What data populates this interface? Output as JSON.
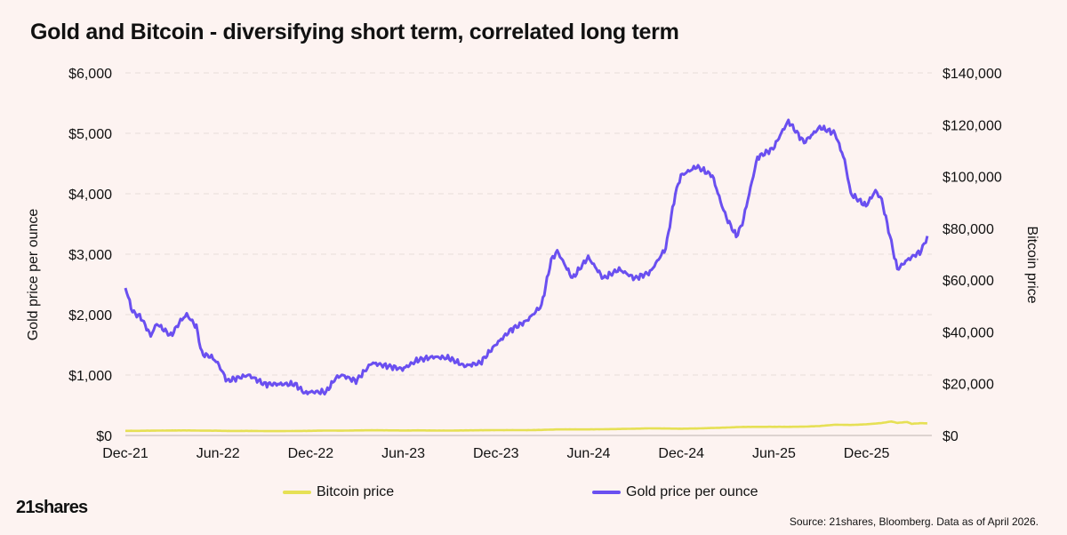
{
  "title": "Gold and Bitcoin - diversifying short term, correlated long term",
  "logo_text": "21shares",
  "source": "Source: 21shares, Bloomberg. Data as of April 2026.",
  "colors": {
    "background": "#fdf3f1",
    "bitcoin": "#e6e055",
    "gold": "#6a4ff0",
    "grid": "#e7dcd9"
  },
  "chart_data": {
    "type": "line",
    "x_axis": {
      "tick_labels": [
        "Dec-21",
        "Jun-22",
        "Dec-22",
        "Jun-23",
        "Dec-23",
        "Jun-24",
        "Dec-24",
        "Jun-25",
        "Dec-25"
      ]
    },
    "y_left": {
      "label": "Gold price per ounce",
      "range": [
        0,
        6000
      ],
      "ticks": [
        "$0",
        "$1,000",
        "$2,000",
        "$3,000",
        "$4,000",
        "$5,000",
        "$6,000"
      ]
    },
    "y_right": {
      "label": "Bitcoin price",
      "range": [
        0,
        140000
      ],
      "ticks": [
        "$0",
        "$20,000",
        "$40,000",
        "$60,000",
        "$80,000",
        "$100,000",
        "$120,000",
        "$140,000"
      ]
    },
    "grid": true,
    "legend_position": "bottom",
    "series": [
      {
        "name": "Bitcoin price",
        "axis": "right",
        "color": "#e6e055",
        "points": [
          [
            "2021-12-01",
            1780
          ],
          [
            "2022-01-01",
            1800
          ],
          [
            "2022-02-01",
            1880
          ],
          [
            "2022-03-01",
            1930
          ],
          [
            "2022-04-01",
            1960
          ],
          [
            "2022-05-01",
            1860
          ],
          [
            "2022-06-01",
            1830
          ],
          [
            "2022-07-01",
            1740
          ],
          [
            "2022-08-01",
            1780
          ],
          [
            "2022-09-01",
            1700
          ],
          [
            "2022-10-01",
            1680
          ],
          [
            "2022-11-01",
            1740
          ],
          [
            "2022-12-01",
            1800
          ],
          [
            "2023-01-01",
            1900
          ],
          [
            "2023-02-01",
            1850
          ],
          [
            "2023-03-01",
            1950
          ],
          [
            "2023-04-01",
            2000
          ],
          [
            "2023-05-01",
            1980
          ],
          [
            "2023-06-01",
            1920
          ],
          [
            "2023-07-01",
            1960
          ],
          [
            "2023-08-01",
            1920
          ],
          [
            "2023-09-01",
            1880
          ],
          [
            "2023-10-01",
            1960
          ],
          [
            "2023-11-01",
            2000
          ],
          [
            "2023-12-01",
            2050
          ],
          [
            "2024-01-01",
            2070
          ],
          [
            "2024-02-01",
            2050
          ],
          [
            "2024-03-01",
            2150
          ],
          [
            "2024-04-01",
            2330
          ],
          [
            "2024-05-01",
            2350
          ],
          [
            "2024-06-01",
            2330
          ],
          [
            "2024-07-01",
            2420
          ],
          [
            "2024-08-01",
            2500
          ],
          [
            "2024-09-01",
            2620
          ],
          [
            "2024-10-01",
            2740
          ],
          [
            "2024-11-01",
            2680
          ],
          [
            "2024-12-01",
            2620
          ],
          [
            "2025-01-01",
            2700
          ],
          [
            "2025-02-01",
            2880
          ],
          [
            "2025-03-01",
            3050
          ],
          [
            "2025-04-01",
            3300
          ],
          [
            "2025-05-01",
            3330
          ],
          [
            "2025-06-01",
            3350
          ],
          [
            "2025-07-01",
            3330
          ],
          [
            "2025-08-01",
            3400
          ],
          [
            "2025-09-01",
            3650
          ],
          [
            "2025-10-01",
            4150
          ],
          [
            "2025-11-01",
            4050
          ],
          [
            "2025-12-01",
            4300
          ],
          [
            "2026-01-01",
            4800
          ],
          [
            "2026-01-20",
            5400
          ],
          [
            "2026-02-01",
            4850
          ],
          [
            "2026-02-20",
            5200
          ],
          [
            "2026-03-01",
            4500
          ],
          [
            "2026-03-20",
            4750
          ],
          [
            "2026-04-01",
            4650
          ]
        ]
      },
      {
        "name": "Gold price per ounce",
        "axis": "left",
        "color": "#6a4ff0",
        "points": [
          [
            "2021-12-01",
            2450
          ],
          [
            "2021-12-15",
            2050
          ],
          [
            "2022-01-01",
            1950
          ],
          [
            "2022-01-20",
            1650
          ],
          [
            "2022-02-01",
            1850
          ],
          [
            "2022-03-01",
            1650
          ],
          [
            "2022-03-20",
            1900
          ],
          [
            "2022-04-01",
            2000
          ],
          [
            "2022-04-20",
            1800
          ],
          [
            "2022-05-01",
            1350
          ],
          [
            "2022-05-20",
            1300
          ],
          [
            "2022-06-01",
            1200
          ],
          [
            "2022-06-20",
            900
          ],
          [
            "2022-07-01",
            930
          ],
          [
            "2022-08-01",
            1000
          ],
          [
            "2022-09-01",
            850
          ],
          [
            "2022-10-01",
            850
          ],
          [
            "2022-11-01",
            850
          ],
          [
            "2022-11-20",
            700
          ],
          [
            "2022-12-01",
            720
          ],
          [
            "2023-01-01",
            720
          ],
          [
            "2023-01-20",
            950
          ],
          [
            "2023-02-01",
            1000
          ],
          [
            "2023-03-01",
            900
          ],
          [
            "2023-04-01",
            1200
          ],
          [
            "2023-05-01",
            1150
          ],
          [
            "2023-06-01",
            1100
          ],
          [
            "2023-07-01",
            1250
          ],
          [
            "2023-08-01",
            1300
          ],
          [
            "2023-09-01",
            1280
          ],
          [
            "2023-10-01",
            1150
          ],
          [
            "2023-11-01",
            1200
          ],
          [
            "2023-12-01",
            1500
          ],
          [
            "2024-01-01",
            1750
          ],
          [
            "2024-02-01",
            1900
          ],
          [
            "2024-03-01",
            2150
          ],
          [
            "2024-03-20",
            2900
          ],
          [
            "2024-04-01",
            3050
          ],
          [
            "2024-05-01",
            2600
          ],
          [
            "2024-06-01",
            2950
          ],
          [
            "2024-07-01",
            2600
          ],
          [
            "2024-08-01",
            2750
          ],
          [
            "2024-09-01",
            2600
          ],
          [
            "2024-10-01",
            2700
          ],
          [
            "2024-11-01",
            3100
          ],
          [
            "2024-11-20",
            4000
          ],
          [
            "2024-12-01",
            4300
          ],
          [
            "2025-01-01",
            4450
          ],
          [
            "2025-02-01",
            4300
          ],
          [
            "2025-02-20",
            3800
          ],
          [
            "2025-03-01",
            3600
          ],
          [
            "2025-03-20",
            3300
          ],
          [
            "2025-04-01",
            3500
          ],
          [
            "2025-05-01",
            4600
          ],
          [
            "2025-06-01",
            4750
          ],
          [
            "2025-06-20",
            5050
          ],
          [
            "2025-07-01",
            5200
          ],
          [
            "2025-08-01",
            4850
          ],
          [
            "2025-09-01",
            5100
          ],
          [
            "2025-10-01",
            5000
          ],
          [
            "2025-10-20",
            4550
          ],
          [
            "2025-11-01",
            4000
          ],
          [
            "2025-12-01",
            3800
          ],
          [
            "2025-12-20",
            4050
          ],
          [
            "2026-01-01",
            3900
          ],
          [
            "2026-01-20",
            3200
          ],
          [
            "2026-02-01",
            2750
          ],
          [
            "2026-02-20",
            2900
          ],
          [
            "2026-03-01",
            2950
          ],
          [
            "2026-03-20",
            3050
          ],
          [
            "2026-04-01",
            3300
          ]
        ]
      }
    ]
  }
}
